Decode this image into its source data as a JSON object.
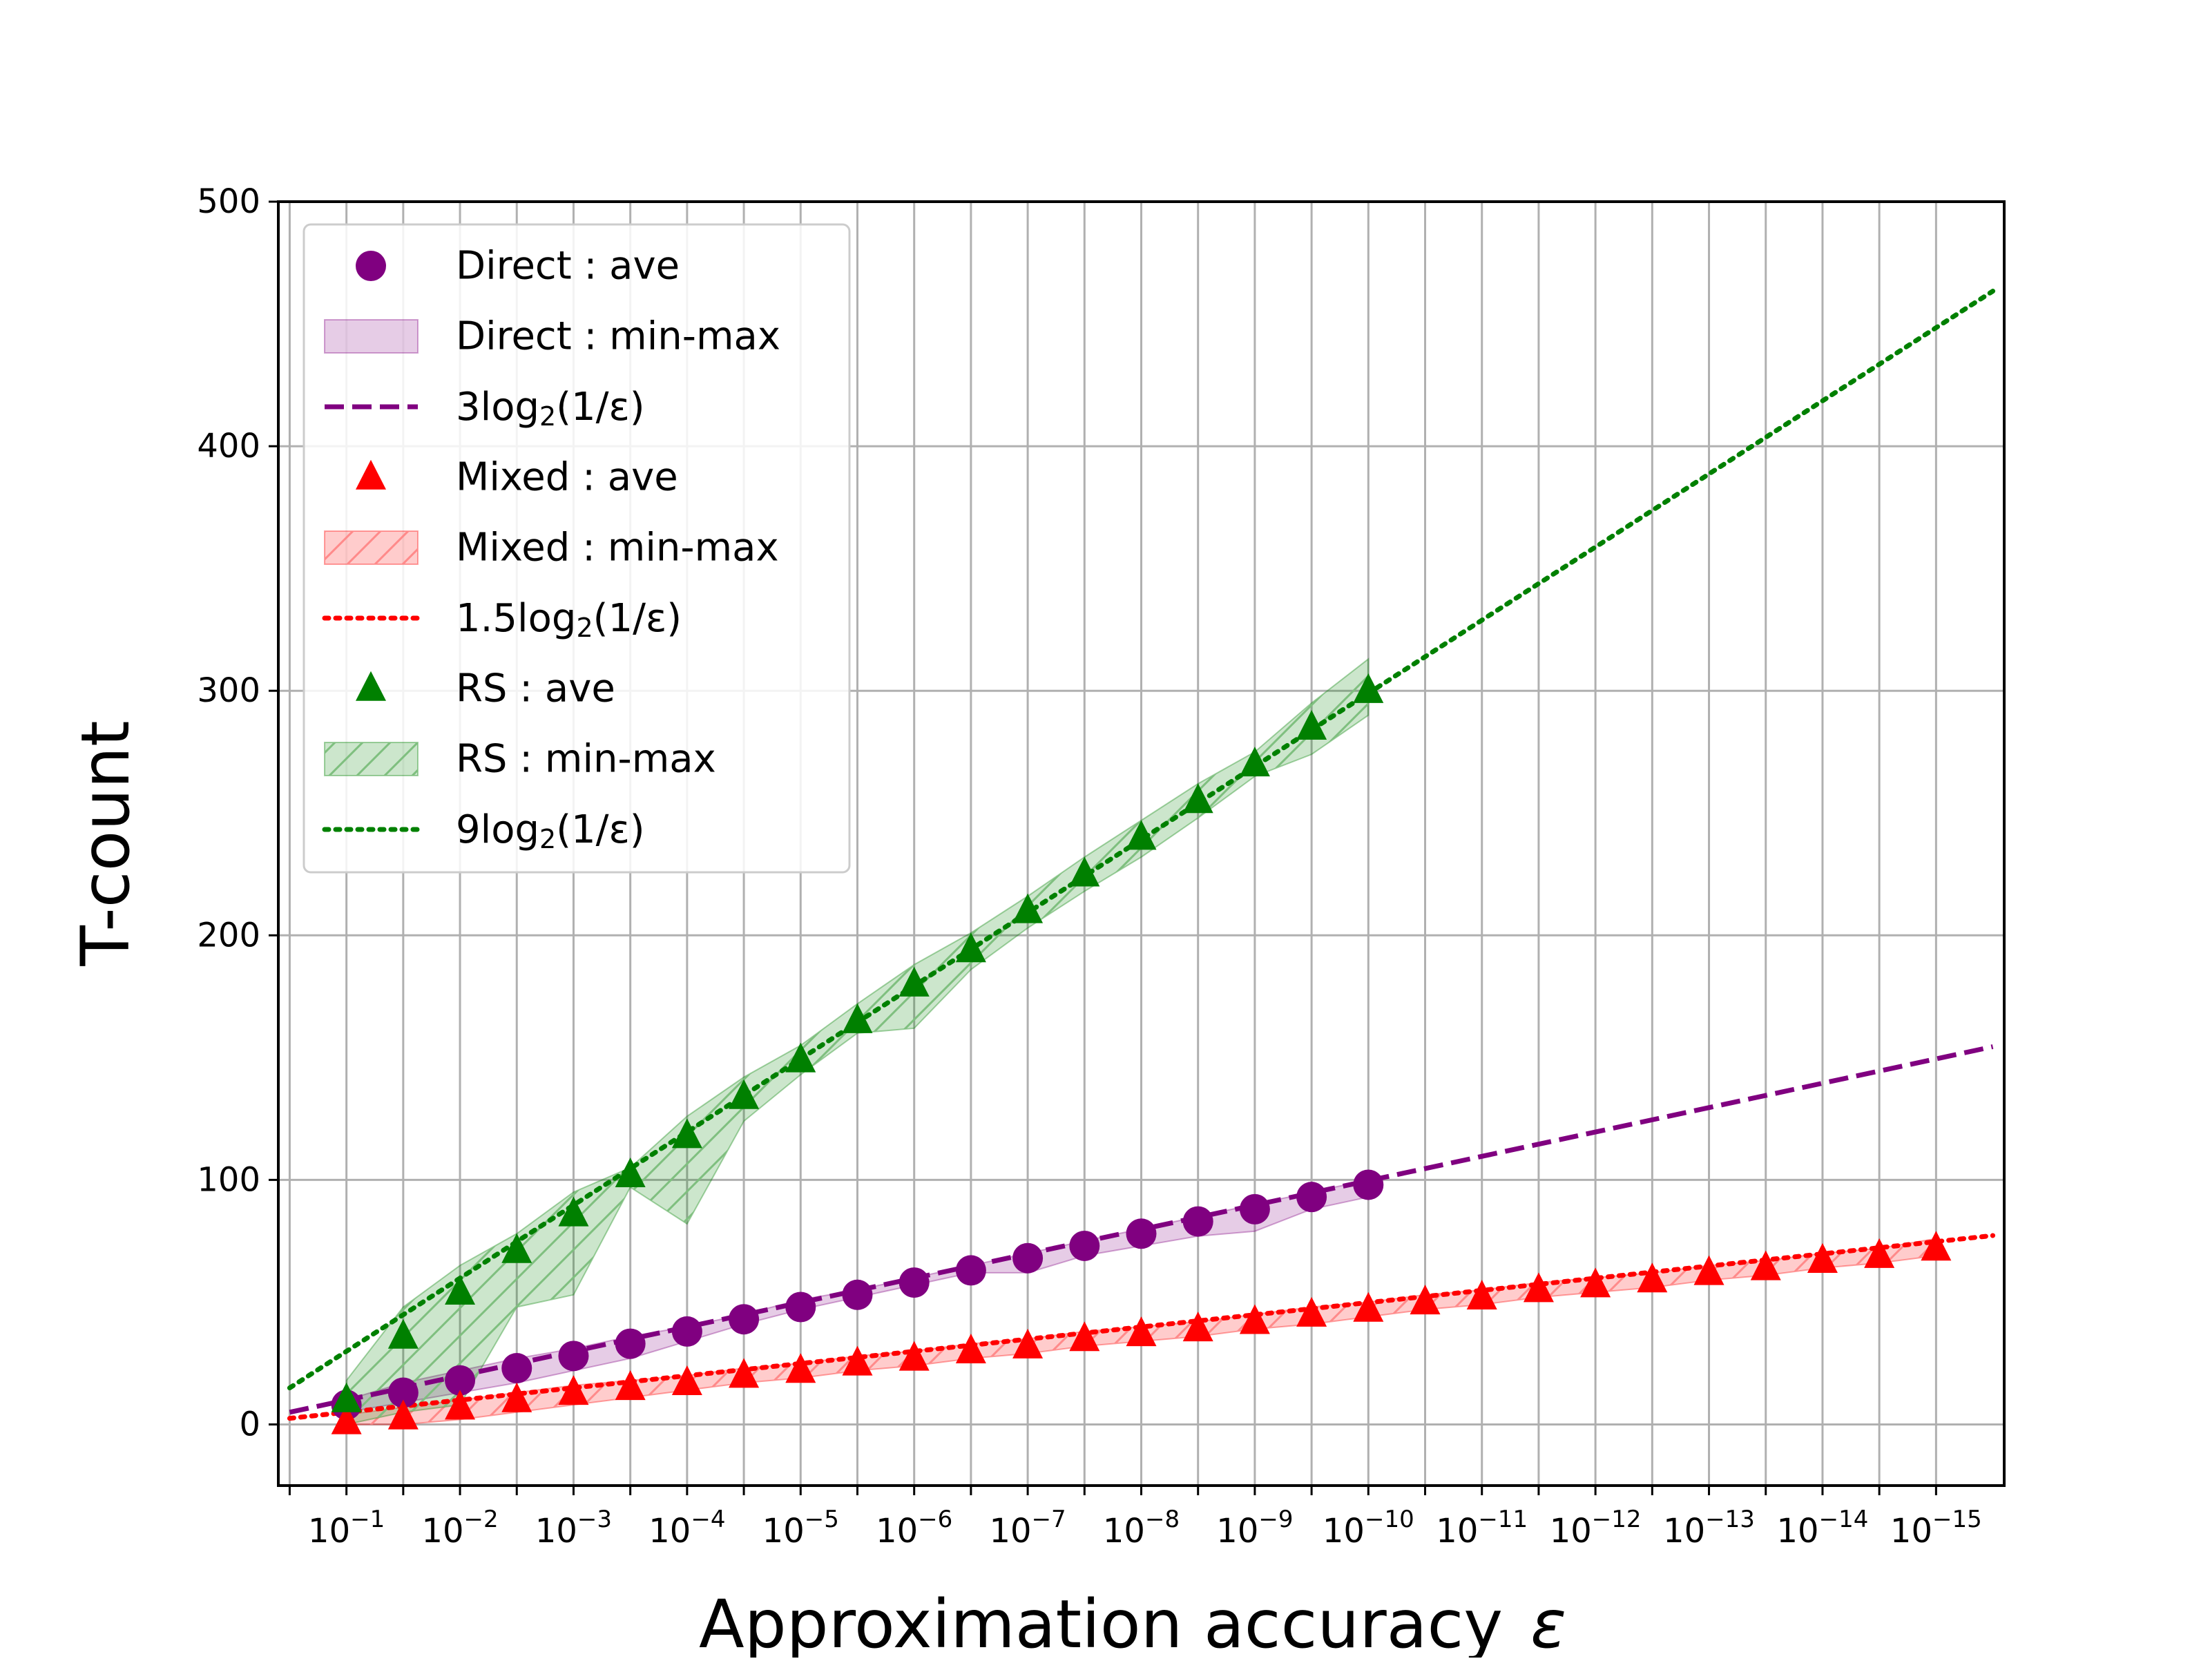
{
  "chart_data": {
    "type": "line",
    "xlabel": "Approximation accuracy",
    "xlabel_symbol": "ε",
    "ylabel": "T-count",
    "ylim": [
      -25,
      500
    ],
    "yticks": [
      0,
      100,
      200,
      300,
      400,
      500
    ],
    "x_exponents": [
      1,
      2,
      3,
      4,
      5,
      6,
      7,
      8,
      9,
      10,
      11,
      12,
      13,
      14,
      15
    ],
    "x_tick_labels": [
      {
        "base": "10",
        "exp": "−1"
      },
      {
        "base": "10",
        "exp": "−2"
      },
      {
        "base": "10",
        "exp": "−3"
      },
      {
        "base": "10",
        "exp": "−4"
      },
      {
        "base": "10",
        "exp": "−5"
      },
      {
        "base": "10",
        "exp": "−6"
      },
      {
        "base": "10",
        "exp": "−7"
      },
      {
        "base": "10",
        "exp": "−8"
      },
      {
        "base": "10",
        "exp": "−9"
      },
      {
        "base": "10",
        "exp": "−10"
      },
      {
        "base": "10",
        "exp": "−11"
      },
      {
        "base": "10",
        "exp": "−12"
      },
      {
        "base": "10",
        "exp": "−13"
      },
      {
        "base": "10",
        "exp": "−14"
      },
      {
        "base": "10",
        "exp": "−15"
      }
    ],
    "x_half_steps": [
      0.5,
      1,
      1.5,
      2,
      2.5,
      3,
      3.5,
      4,
      4.5,
      5,
      5.5,
      6,
      6.5,
      7,
      7.5,
      8,
      8.5,
      9,
      9.5,
      10,
      10.5,
      11,
      11.5,
      12,
      12.5,
      13,
      13.5,
      14,
      14.5,
      15
    ],
    "grid": true,
    "legend_placement": "upper-left",
    "series": [
      {
        "name": "Direct : ave",
        "kind": "points",
        "marker": "circle",
        "color": "#800080",
        "x": [
          1,
          1.5,
          2,
          2.5,
          3,
          3.5,
          4,
          4.5,
          5,
          5.5,
          6,
          6.5,
          7,
          7.5,
          8,
          8.5,
          9,
          9.5,
          10
        ],
        "values": [
          8,
          13,
          18,
          23,
          28,
          33,
          38,
          43,
          48,
          53,
          58,
          63,
          68,
          73,
          78,
          83,
          88,
          93,
          98
        ]
      },
      {
        "name": "Direct : min-max",
        "kind": "band",
        "color": "#800080",
        "x": [
          1,
          1.5,
          2,
          2.5,
          3,
          3.5,
          4,
          4.5,
          5,
          5.5,
          6,
          6.5,
          7,
          7.5,
          8,
          8.5,
          9,
          9.5,
          10
        ],
        "min": [
          5,
          9,
          13,
          17,
          22,
          27,
          34,
          41,
          47,
          52,
          57,
          62,
          62,
          69,
          73,
          77,
          79,
          88,
          93
        ],
        "max": [
          10,
          17,
          22,
          27,
          31,
          36,
          40,
          45,
          51,
          55,
          60,
          65,
          70,
          75,
          80,
          85,
          90,
          95,
          100
        ]
      },
      {
        "name": "3log₂(1/ε)",
        "kind": "line",
        "style": "dashed",
        "color": "#800080",
        "formula_coefficient": 3,
        "x_range": [
          0.5,
          15.5
        ]
      },
      {
        "name": "Mixed : ave",
        "kind": "points",
        "marker": "triangle",
        "color": "#ff0000",
        "x": [
          1,
          1.5,
          2,
          2.5,
          3,
          3.5,
          4,
          4.5,
          5,
          5.5,
          6,
          6.5,
          7,
          7.5,
          8,
          8.5,
          9,
          9.5,
          10,
          10.5,
          11,
          11.5,
          12,
          12.5,
          13,
          13.5,
          14,
          14.5,
          15
        ],
        "values": [
          1,
          3,
          7,
          10,
          13,
          15,
          17,
          20,
          22,
          25,
          27,
          30,
          32,
          35,
          37,
          39,
          42,
          45,
          47,
          50,
          52,
          55,
          57,
          59,
          62,
          64,
          67,
          69,
          72
        ]
      },
      {
        "name": "Mixed : min-max",
        "kind": "band",
        "color": "#ff0000",
        "x": [
          1,
          1.5,
          2,
          2.5,
          3,
          3.5,
          4,
          4.5,
          5,
          5.5,
          6,
          6.5,
          7,
          7.5,
          8,
          8.5,
          9,
          9.5,
          10,
          10.5,
          11,
          11.5,
          12,
          12.5,
          13,
          13.5,
          14,
          14.5,
          15
        ],
        "min": [
          0,
          0,
          2,
          5,
          8,
          11,
          14,
          17,
          19,
          22,
          24,
          27,
          29,
          32,
          34,
          36,
          39,
          41,
          44,
          47,
          49,
          52,
          54,
          56,
          59,
          61,
          64,
          66,
          69
        ],
        "max": [
          4,
          7,
          10,
          13,
          16,
          18,
          20,
          23,
          25,
          28,
          30,
          33,
          35,
          38,
          40,
          42,
          45,
          48,
          50,
          53,
          55,
          58,
          60,
          62,
          65,
          67,
          70,
          72,
          76
        ]
      },
      {
        "name": "1.5log₂(1/ε)",
        "kind": "line",
        "style": "dotted",
        "color": "#ff0000",
        "formula_coefficient": 1.5,
        "x_range": [
          0.5,
          15.5
        ]
      },
      {
        "name": "RS : ave",
        "kind": "points",
        "marker": "triangle",
        "color": "#008000",
        "x": [
          1,
          1.5,
          2,
          2.5,
          3,
          3.5,
          4,
          4.5,
          5,
          5.5,
          6,
          6.5,
          7,
          7.5,
          8,
          8.5,
          9,
          9.5,
          10
        ],
        "values": [
          10,
          36,
          54,
          71,
          86,
          102,
          118,
          134,
          149,
          165,
          180,
          194,
          210,
          225,
          240,
          255,
          270,
          285,
          300
        ]
      },
      {
        "name": "RS : min-max",
        "kind": "band",
        "color": "#008000",
        "x": [
          1,
          1.5,
          2,
          2.5,
          3,
          3.5,
          4,
          4.5,
          5,
          5.5,
          6,
          6.5,
          7,
          7.5,
          8,
          8.5,
          9,
          9.5,
          10
        ],
        "min": [
          0,
          5,
          8,
          48,
          53,
          97,
          82,
          124,
          143,
          160,
          162,
          186,
          203,
          218,
          232,
          248,
          265,
          274,
          290
        ],
        "max": [
          18,
          48,
          65,
          78,
          95,
          105,
          126,
          142,
          155,
          172,
          188,
          201,
          216,
          232,
          247,
          262,
          275,
          295,
          313
        ]
      },
      {
        "name": "9log₂(1/ε)",
        "kind": "line",
        "style": "dotted",
        "color": "#008000",
        "formula_coefficient": 9,
        "x_range": [
          0.5,
          15.5
        ]
      }
    ],
    "legend": [
      {
        "text": "Direct : ave"
      },
      {
        "text": "Direct : min-max"
      },
      {
        "prefix": "3log",
        "sub": "2",
        "suffix": "(1/ε)"
      },
      {
        "text": "Mixed : ave"
      },
      {
        "text": "Mixed : min-max"
      },
      {
        "prefix": "1.5log",
        "sub": "2",
        "suffix": "(1/ε)"
      },
      {
        "text": "RS : ave"
      },
      {
        "text": "RS : min-max"
      },
      {
        "prefix": "9log",
        "sub": "2",
        "suffix": "(1/ε)"
      }
    ]
  }
}
